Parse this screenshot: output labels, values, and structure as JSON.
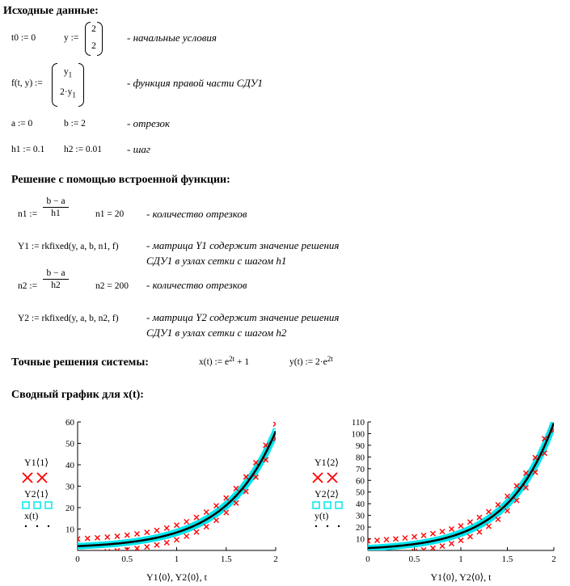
{
  "headings": {
    "input_data": "Исходные данные:",
    "builtin_solution": "Решение с помощью встроенной функции:",
    "exact_solutions": "Точные решения системы:",
    "summary_plot": "Сводный график для x(t):"
  },
  "input": {
    "t0": "t0 := 0",
    "y_lhs": "y :=",
    "y_vec": [
      "2",
      "2"
    ],
    "initial_comment": "- начальные условия",
    "f_lhs": "f(t, y) :=",
    "f_vec_top": "y",
    "f_vec_top_sub": "1",
    "f_vec_bot": "2·y",
    "f_vec_bot_sub": "1",
    "f_comment": "- функция правой части СДУ1",
    "a": "a := 0",
    "b": "b := 2",
    "segment_comment": "- отрезок",
    "h1": "h1 := 0.1",
    "h2": "h2 := 0.01",
    "step_comment": "- шаг"
  },
  "builtin": {
    "n1_lhs": "n1 :=",
    "n1_num": "b − a",
    "n1_den": "h1",
    "n1_val": "n1 = 20",
    "n1_comment": "- количество отрезков",
    "Y1": "Y1 := rkfixed(y, a, b, n1, f)",
    "Y1_comment1": "- матрица  Y1 содержит значение решения",
    "Y1_comment2": "СДУ1 в узлах сетки  с шагом h1",
    "n2_lhs": "n2 :=",
    "n2_num": "b − a",
    "n2_den": "h2",
    "n2_val": "n2 = 200",
    "n2_comment": "- количество отрезков",
    "Y2": "Y2 := rkfixed(y, a, b, n2, f)",
    "Y2_comment1": "- матрица  Y2 содержит значение решения",
    "Y2_comment2": "СДУ1 в узлах сетки  с шагом h2"
  },
  "exact": {
    "x_lhs": "x(t) := e",
    "x_exp": "2t",
    "x_rhs": " + 1",
    "y_lhs": "y(t) := 2·e",
    "y_exp": "2t"
  },
  "colors": {
    "rk_coarse": "#ff0000",
    "rk_fine": "#00e5ee",
    "exact": "#000000"
  },
  "chart_data": [
    {
      "type": "line",
      "title": "",
      "xlabel": "Y1⟨0⟩, Y2⟨0⟩, t",
      "ylabel": "",
      "xlim": [
        0,
        2
      ],
      "ylim": [
        0,
        60
      ],
      "x_ticks": [
        "0",
        "0.5",
        "1",
        "1.5",
        "2"
      ],
      "y_ticks": [
        "10",
        "20",
        "30",
        "40",
        "50",
        "60"
      ],
      "legend": [
        "Y1⟨1⟩",
        "Y2⟨1⟩",
        "x(t)"
      ],
      "series": [
        {
          "name": "Y1⟨1⟩",
          "function": "exp(2t)+1",
          "step": 0.1
        },
        {
          "name": "Y2⟨1⟩",
          "function": "exp(2t)+1",
          "step": 0.01
        },
        {
          "name": "x(t)",
          "function": "exp(2t)+1"
        }
      ]
    },
    {
      "type": "line",
      "title": "",
      "xlabel": "Y1⟨0⟩, Y2⟨0⟩, t",
      "ylabel": "",
      "xlim": [
        0,
        2
      ],
      "ylim": [
        0,
        110
      ],
      "x_ticks": [
        "0",
        "0.5",
        "1",
        "1.5",
        "2"
      ],
      "y_ticks": [
        "10",
        "20",
        "30",
        "40",
        "50",
        "60",
        "70",
        "80",
        "90",
        "100",
        "110"
      ],
      "legend": [
        "Y1⟨2⟩",
        "Y2⟨2⟩",
        "y(t)"
      ],
      "series": [
        {
          "name": "Y1⟨2⟩",
          "function": "2*exp(2t)",
          "step": 0.1
        },
        {
          "name": "Y2⟨2⟩",
          "function": "2*exp(2t)",
          "step": 0.01
        },
        {
          "name": "y(t)",
          "function": "2*exp(2t)"
        }
      ]
    }
  ]
}
